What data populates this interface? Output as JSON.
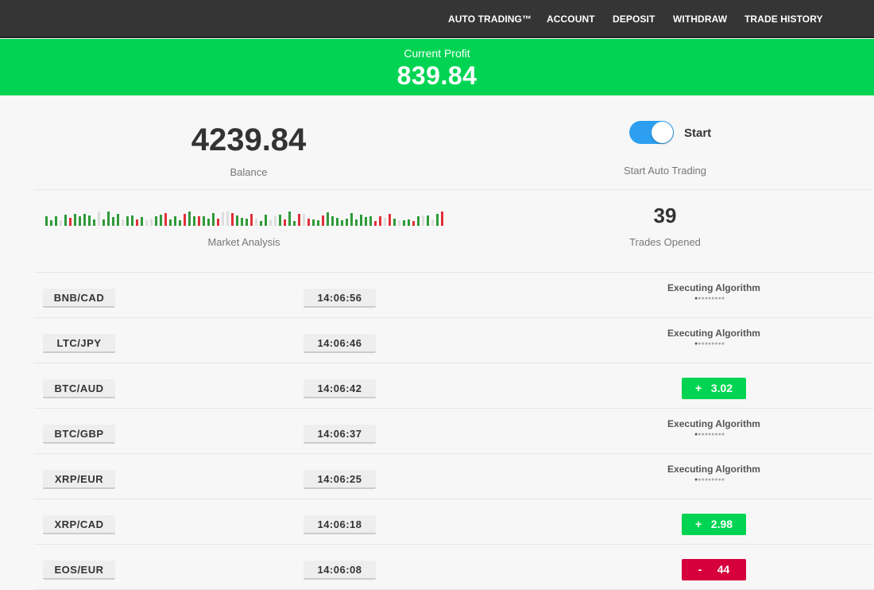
{
  "nav": [
    "AUTO TRADING™",
    "ACCOUNT",
    "DEPOSIT",
    "WITHDRAW",
    "TRADE HISTORY"
  ],
  "profit": {
    "label": "Current Profit",
    "value": "839.84"
  },
  "balance": {
    "value": "4239.84",
    "label": "Balance"
  },
  "auto_trading": {
    "toggle_on": true,
    "toggle_label": "Start",
    "label": "Start Auto Trading"
  },
  "market_analysis": {
    "label": "Market Analysis"
  },
  "trades_opened": {
    "value": "39",
    "label": "Trades Opened"
  },
  "colors": {
    "profit_green": "#00d452",
    "loss_red": "#d6003c",
    "toggle_blue": "#2d9ff0"
  },
  "trades": [
    {
      "pair": "BNB/CAD",
      "time": "14:06:56",
      "status": "Executing Algorithm",
      "result": null
    },
    {
      "pair": "LTC/JPY",
      "time": "14:06:46",
      "status": "Executing Algorithm",
      "result": null
    },
    {
      "pair": "BTC/AUD",
      "time": "14:06:42",
      "status": null,
      "result": "+   3.02",
      "positive": true
    },
    {
      "pair": "BTC/GBP",
      "time": "14:06:37",
      "status": "Executing Algorithm",
      "result": null
    },
    {
      "pair": "XRP/EUR",
      "time": "14:06:25",
      "status": "Executing Algorithm",
      "result": null
    },
    {
      "pair": "XRP/CAD",
      "time": "14:06:18",
      "status": null,
      "result": "+   2.98",
      "positive": true
    },
    {
      "pair": "EOS/EUR",
      "time": "14:06:08",
      "status": null,
      "result": "-     44",
      "positive": false
    }
  ]
}
